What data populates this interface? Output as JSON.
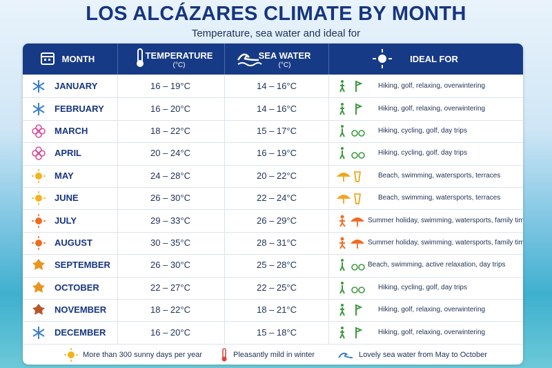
{
  "title": "LOS ALCÁZARES CLIMATE BY MONTH",
  "subtitle": "Temperature, sea water and ideal for",
  "table": {
    "header": [
      {
        "label": "MONTH"
      },
      {
        "label": "TEMPERATURE",
        "unit": "(°C)"
      },
      {
        "label": "SEA WATER",
        "unit": "(°C)"
      },
      {
        "label": "IDEAL FOR"
      }
    ],
    "rows": [
      [
        "JANUARY",
        "16 – 19°C",
        "14 – 16°C",
        "Hiking, golf, relaxing, overwintering"
      ],
      [
        "FEBRUARY",
        "16 – 20°C",
        "14 – 16°C",
        "Hiking, golf, relaxing, overwintering"
      ],
      [
        "MARCH",
        "18 – 22°C",
        "15 – 17°C",
        "Hiking, cycling, golf, day trips"
      ],
      [
        "APRIL",
        "20 – 24°C",
        "16 – 19°C",
        "Hiking, cycling, golf, day trips"
      ],
      [
        "MAY",
        "24 – 28°C",
        "20 – 22°C",
        "Beach, swimming, watersports, terraces"
      ],
      [
        "JUNE",
        "26 – 30°C",
        "22 – 24°C",
        "Beach, swimming, watersports, terraces"
      ],
      [
        "JULY",
        "29 – 33°C",
        "26 – 29°C",
        "Summer holiday, swimming, watersports, family time"
      ],
      [
        "AUGUST",
        "30 – 35°C",
        "28 – 31°C",
        "Summer holiday, swimming, watersports, family time"
      ],
      [
        "SEPTEMBER",
        "26 – 30°C",
        "25 – 28°C",
        "Beach, swimming, active relaxation, day trips"
      ],
      [
        "OCTOBER",
        "22 – 27°C",
        "22 – 25°C",
        "Hiking, cycling, golf, day trips"
      ],
      [
        "NOVEMBER",
        "18 – 22°C",
        "18 – 21°C",
        "Hiking, golf, relaxing, overwintering"
      ],
      [
        "DECEMBER",
        "16 – 20°C",
        "15 – 18°C",
        "Hiking, golf, relaxing, overwintering"
      ]
    ]
  },
  "footer": [
    "More than 300 sunny days per year",
    "Pleasantly mild in winter",
    "Lovely sea water from May to October"
  ]
}
